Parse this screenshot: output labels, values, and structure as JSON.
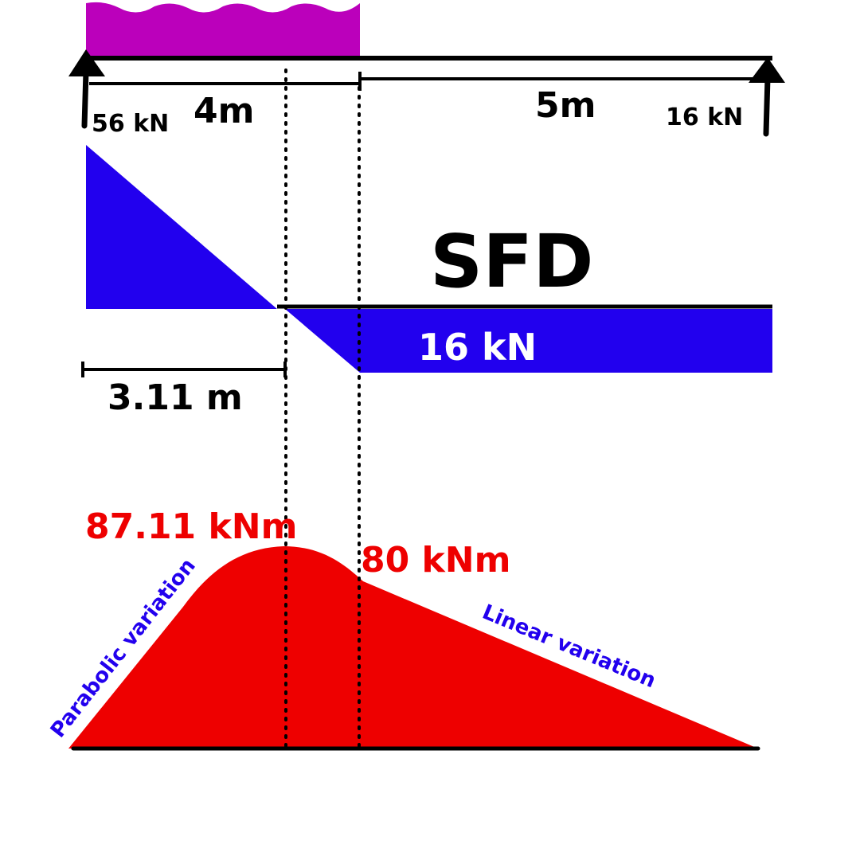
{
  "colors": {
    "load": "#bb00bb",
    "sfd": "#2200ee",
    "bmd": "#ee0000",
    "line": "#000000",
    "annotation": "#2200ee",
    "white": "#ffffff"
  },
  "beam": {
    "left_reaction": "56 kN",
    "right_reaction": "16 kN",
    "span_udl": "4m",
    "span_free": "5m"
  },
  "sfd": {
    "title": "SFD",
    "value_label": "16 kN",
    "zero_location": "3.11 m"
  },
  "bmd": {
    "max_moment": "87.11 kNm",
    "moment_at_load_end": "80 kNm",
    "left_note": "Parabolic variation",
    "right_note": "Linear variation"
  }
}
